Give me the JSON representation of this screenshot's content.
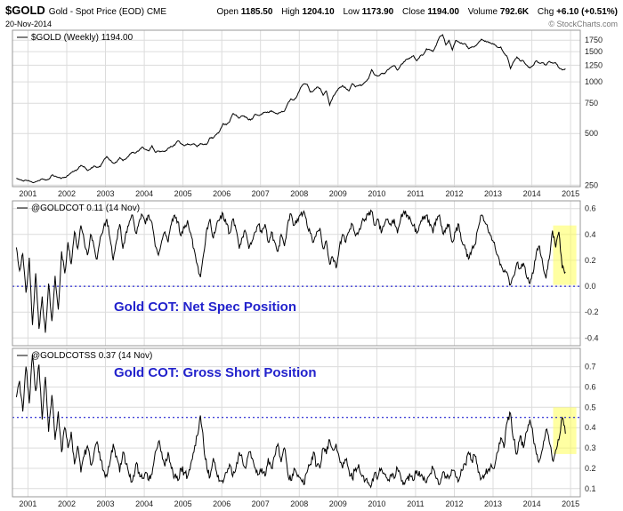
{
  "header": {
    "symbol": "$GOLD",
    "title": "Gold - Spot Price (EOD) CME",
    "date": "20-Nov-2014",
    "credit": "© StockCharts.com",
    "quote": {
      "open_label": "Open",
      "open": "1185.50",
      "high_label": "High",
      "high": "1204.10",
      "low_label": "Low",
      "low": "1173.90",
      "close_label": "Close",
      "close": "1194.00",
      "volume_label": "Volume",
      "volume": "792.6K",
      "chg_label": "Chg",
      "chg": "+6.10 (+0.51%)"
    }
  },
  "colors": {
    "line": "#000000",
    "grid": "#dcdcdc",
    "border": "#999999",
    "text": "#222222",
    "dotted": "#0000cc",
    "highlight": "#ffff55",
    "annotation": "#2222cc"
  },
  "chart_data": [
    {
      "type": "line",
      "legend": "$GOLD (Weekly) 1194.00",
      "yscale": "log",
      "ylim": [
        245,
        2000
      ],
      "yticks": [
        [
          1750,
          "1750"
        ],
        [
          1500,
          "1500"
        ],
        [
          1250,
          "1250"
        ],
        [
          1000,
          "1000"
        ],
        [
          750,
          "750"
        ],
        [
          500,
          "500"
        ],
        [
          250,
          "250"
        ]
      ],
      "xlim": [
        2000.6,
        2015.25
      ],
      "xticks": [
        [
          2001,
          "2001"
        ],
        [
          2002,
          "2002"
        ],
        [
          2003,
          "2003"
        ],
        [
          2004,
          "2004"
        ],
        [
          2005,
          "2005"
        ],
        [
          2006,
          "2006"
        ],
        [
          2007,
          "2007"
        ],
        [
          2008,
          "2008"
        ],
        [
          2009,
          "2009"
        ],
        [
          2010,
          "2010"
        ],
        [
          2011,
          "2011"
        ],
        [
          2012,
          "2012"
        ],
        [
          2013,
          "2013"
        ],
        [
          2014,
          "2014"
        ],
        [
          2015,
          "2015"
        ]
      ],
      "x_start": 2000.7,
      "x_step": 0.08333,
      "values": [
        274,
        269,
        265,
        267,
        264,
        259,
        262,
        266,
        272,
        267,
        270,
        286,
        282,
        277,
        274,
        278,
        284,
        296,
        303,
        309,
        326,
        320,
        304,
        311,
        323,
        318,
        320,
        347,
        367,
        350,
        336,
        340,
        362,
        347,
        356,
        376,
        388,
        386,
        398,
        417,
        403,
        396,
        424,
        389,
        394,
        393,
        392,
        410,
        420,
        427,
        453,
        438,
        424,
        436,
        429,
        436,
        419,
        437,
        431,
        435,
        473,
        471,
        495,
        518,
        571,
        562,
        584,
        652,
        642,
        614,
        634,
        625,
        600,
        605,
        648,
        637,
        652,
        666,
        663,
        679,
        661,
        652,
        667,
        674,
        745,
        795,
        785,
        835,
        925,
        973,
        968,
        873,
        887,
        930,
        918,
        835,
        884,
        732,
        816,
        871,
        921,
        952,
        918,
        885,
        977,
        934,
        955,
        957,
        997,
        1042,
        1177,
        1096,
        1083,
        1118,
        1115,
        1181,
        1215,
        1244,
        1171,
        1248,
        1309,
        1359,
        1386,
        1421,
        1329,
        1413,
        1439,
        1558,
        1538,
        1504,
        1630,
        1827,
        1882,
        1640,
        1746,
        1532,
        1739,
        1711,
        1670,
        1664,
        1560,
        1598,
        1615,
        1687,
        1772,
        1721,
        1715,
        1677,
        1661,
        1590,
        1598,
        1471,
        1394,
        1194,
        1313,
        1396,
        1329,
        1325,
        1253,
        1204,
        1246,
        1326,
        1285,
        1290,
        1252,
        1317,
        1285,
        1289,
        1210,
        1174,
        1194
      ]
    },
    {
      "type": "line",
      "legend": "@GOLDCOT 0.11 (14 Nov)",
      "annotation": "Gold COT: Net Spec Position",
      "yscale": "linear",
      "ylim": [
        -0.46,
        0.66
      ],
      "yticks": [
        [
          0.6,
          "0.6"
        ],
        [
          0.4,
          "0.4"
        ],
        [
          0.2,
          "0.2"
        ],
        [
          0,
          "0.0"
        ],
        [
          -0.2,
          "-0.2"
        ],
        [
          -0.4,
          "-0.4"
        ]
      ],
      "xlim": [
        2000.6,
        2015.25
      ],
      "xticks": [
        [
          2001,
          "2001"
        ],
        [
          2002,
          "2002"
        ],
        [
          2003,
          "2003"
        ],
        [
          2004,
          "2004"
        ],
        [
          2005,
          "2005"
        ],
        [
          2006,
          "2006"
        ],
        [
          2007,
          "2007"
        ],
        [
          2008,
          "2008"
        ],
        [
          2009,
          "2009"
        ],
        [
          2010,
          "2010"
        ],
        [
          2011,
          "2011"
        ],
        [
          2012,
          "2012"
        ],
        [
          2013,
          "2013"
        ],
        [
          2014,
          "2014"
        ],
        [
          2015,
          "2015"
        ]
      ],
      "dotted_line": 0.0,
      "highlight": {
        "x0": 2014.55,
        "x1": 2015.15,
        "y0": 0.01,
        "y1": 0.47
      },
      "x_start": 2000.7,
      "x_step": 0.08333,
      "values": [
        0.3,
        0.12,
        0.25,
        -0.05,
        0.22,
        -0.3,
        0.1,
        -0.33,
        -0.08,
        -0.36,
        0.02,
        -0.27,
        0.08,
        -0.18,
        0.27,
        0.1,
        0.34,
        0.17,
        0.42,
        0.29,
        0.47,
        0.35,
        0.24,
        0.4,
        0.31,
        0.21,
        0.38,
        0.45,
        0.52,
        0.37,
        0.2,
        0.35,
        0.48,
        0.29,
        0.42,
        0.5,
        0.55,
        0.41,
        0.5,
        0.55,
        0.48,
        0.55,
        0.49,
        0.31,
        0.24,
        0.35,
        0.42,
        0.34,
        0.48,
        0.55,
        0.5,
        0.39,
        0.45,
        0.51,
        0.41,
        0.29,
        0.17,
        0.07,
        0.25,
        0.45,
        0.52,
        0.37,
        0.48,
        0.52,
        0.56,
        0.48,
        0.41,
        0.52,
        0.44,
        0.29,
        0.38,
        0.42,
        0.29,
        0.35,
        0.42,
        0.48,
        0.41,
        0.48,
        0.34,
        0.42,
        0.34,
        0.27,
        0.4,
        0.31,
        0.48,
        0.56,
        0.47,
        0.52,
        0.55,
        0.58,
        0.47,
        0.41,
        0.34,
        0.42,
        0.45,
        0.29,
        0.35,
        0.17,
        0.22,
        0.14,
        0.3,
        0.4,
        0.34,
        0.42,
        0.48,
        0.39,
        0.42,
        0.5,
        0.52,
        0.55,
        0.58,
        0.47,
        0.52,
        0.41,
        0.48,
        0.52,
        0.47,
        0.52,
        0.41,
        0.52,
        0.58,
        0.55,
        0.52,
        0.47,
        0.41,
        0.48,
        0.52,
        0.55,
        0.47,
        0.41,
        0.52,
        0.55,
        0.41,
        0.45,
        0.48,
        0.34,
        0.42,
        0.48,
        0.34,
        0.29,
        0.21,
        0.28,
        0.32,
        0.45,
        0.55,
        0.5,
        0.44,
        0.39,
        0.34,
        0.24,
        0.17,
        0.11,
        0.1,
        0.01,
        0.08,
        0.18,
        0.14,
        0.18,
        0.07,
        0.02,
        0.1,
        0.26,
        0.31,
        0.17,
        0.06,
        0.21,
        0.43,
        0.3,
        0.42,
        0.14,
        0.11
      ]
    },
    {
      "type": "line",
      "legend": "@GOLDCOTSS 0.37 (14 Nov)",
      "annotation": "Gold COT: Gross Short Position",
      "yscale": "linear",
      "ylim": [
        0.06,
        0.79
      ],
      "yticks": [
        [
          0.7,
          "0.7"
        ],
        [
          0.6,
          "0.6"
        ],
        [
          0.5,
          "0.5"
        ],
        [
          0.4,
          "0.4"
        ],
        [
          0.3,
          "0.3"
        ],
        [
          0.2,
          "0.2"
        ],
        [
          0.1,
          "0.1"
        ]
      ],
      "xlim": [
        2000.6,
        2015.25
      ],
      "xticks": [
        [
          2001,
          "2001"
        ],
        [
          2002,
          "2002"
        ],
        [
          2003,
          "2003"
        ],
        [
          2004,
          "2004"
        ],
        [
          2005,
          "2005"
        ],
        [
          2006,
          "2006"
        ],
        [
          2007,
          "2007"
        ],
        [
          2008,
          "2008"
        ],
        [
          2009,
          "2009"
        ],
        [
          2010,
          "2010"
        ],
        [
          2011,
          "2011"
        ],
        [
          2012,
          "2012"
        ],
        [
          2013,
          "2013"
        ],
        [
          2014,
          "2014"
        ],
        [
          2015,
          "2015"
        ]
      ],
      "dotted_line": 0.45,
      "highlight": {
        "x0": 2014.55,
        "x1": 2015.15,
        "y0": 0.27,
        "y1": 0.5
      },
      "x_start": 2000.7,
      "x_step": 0.08333,
      "values": [
        0.55,
        0.63,
        0.48,
        0.7,
        0.52,
        0.76,
        0.58,
        0.71,
        0.44,
        0.65,
        0.38,
        0.56,
        0.34,
        0.48,
        0.28,
        0.4,
        0.3,
        0.38,
        0.22,
        0.31,
        0.18,
        0.26,
        0.31,
        0.22,
        0.27,
        0.33,
        0.24,
        0.19,
        0.16,
        0.23,
        0.32,
        0.26,
        0.18,
        0.28,
        0.22,
        0.16,
        0.14,
        0.22,
        0.18,
        0.15,
        0.18,
        0.14,
        0.17,
        0.28,
        0.33,
        0.28,
        0.21,
        0.28,
        0.2,
        0.16,
        0.14,
        0.2,
        0.18,
        0.16,
        0.22,
        0.28,
        0.36,
        0.46,
        0.32,
        0.2,
        0.16,
        0.25,
        0.18,
        0.14,
        0.13,
        0.18,
        0.22,
        0.16,
        0.2,
        0.28,
        0.24,
        0.2,
        0.28,
        0.25,
        0.2,
        0.17,
        0.2,
        0.16,
        0.25,
        0.2,
        0.26,
        0.32,
        0.23,
        0.3,
        0.18,
        0.14,
        0.2,
        0.16,
        0.15,
        0.12,
        0.18,
        0.22,
        0.28,
        0.21,
        0.2,
        0.3,
        0.27,
        0.34,
        0.29,
        0.32,
        0.25,
        0.2,
        0.24,
        0.19,
        0.15,
        0.2,
        0.22,
        0.16,
        0.14,
        0.13,
        0.12,
        0.18,
        0.16,
        0.2,
        0.17,
        0.14,
        0.17,
        0.15,
        0.2,
        0.16,
        0.13,
        0.15,
        0.16,
        0.14,
        0.19,
        0.16,
        0.14,
        0.13,
        0.17,
        0.2,
        0.15,
        0.12,
        0.18,
        0.16,
        0.15,
        0.19,
        0.16,
        0.14,
        0.19,
        0.22,
        0.28,
        0.24,
        0.26,
        0.18,
        0.15,
        0.17,
        0.19,
        0.22,
        0.2,
        0.28,
        0.35,
        0.3,
        0.43,
        0.47,
        0.34,
        0.27,
        0.36,
        0.3,
        0.38,
        0.44,
        0.36,
        0.27,
        0.24,
        0.3,
        0.39,
        0.33,
        0.24,
        0.29,
        0.34,
        0.45,
        0.37
      ]
    }
  ]
}
